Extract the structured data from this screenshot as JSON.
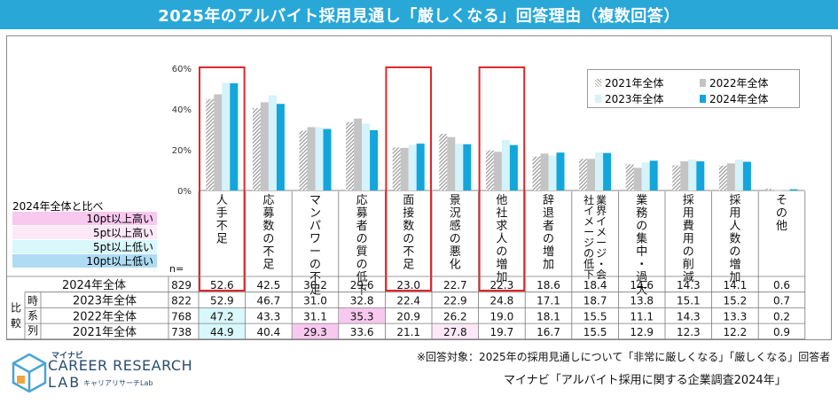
{
  "header": {
    "title": "2025年のアルバイト採用見通し「厳しくなる」回答理由（複数回答）"
  },
  "colors": {
    "banner": "#29a8d8",
    "s2021": "#9e9e9e",
    "s2022": "#c4c4c4",
    "s2023": "#d4f3fa",
    "s2024": "#12a6dc",
    "highlight": "#e0272b",
    "pink_dark": "#f8c8ee",
    "pink_light": "#fde8f8",
    "cyan_light": "#d8f8fb",
    "cyan_dark": "#aedcf4"
  },
  "chart_data": {
    "type": "bar",
    "ylim": [
      0,
      60
    ],
    "yticks": [
      "0%",
      "20%",
      "40%",
      "60%"
    ],
    "n_label": "n=",
    "categories": [
      "人手不足",
      "応募数の不足",
      "マンパワーの不足",
      "応募者の質の低下",
      "面接数の不足",
      "景況感の悪化",
      "他社求人の増加",
      "辞退者の増加",
      "業界イメージ・会社イメージの低下",
      "業務の集中・過大",
      "採用費用の削減",
      "採用人数の増加",
      "その他"
    ],
    "highlighted": [
      0,
      4,
      6
    ],
    "series": [
      {
        "name": "2021年全体",
        "n": 738,
        "values": [
          44.9,
          40.4,
          29.3,
          33.6,
          21.1,
          27.8,
          19.7,
          16.7,
          15.5,
          12.9,
          12.3,
          12.2,
          0.9
        ]
      },
      {
        "name": "2022年全体",
        "n": 768,
        "values": [
          47.2,
          43.3,
          31.1,
          35.3,
          20.9,
          26.2,
          19.0,
          18.1,
          15.5,
          11.1,
          14.3,
          13.3,
          0.2
        ]
      },
      {
        "name": "2023年全体",
        "n": 822,
        "values": [
          52.9,
          46.7,
          31.0,
          32.8,
          22.4,
          22.9,
          24.8,
          17.1,
          18.7,
          13.8,
          15.1,
          15.2,
          0.7
        ]
      },
      {
        "name": "2024年全体",
        "n": 829,
        "values": [
          52.6,
          42.5,
          30.2,
          29.6,
          23.0,
          22.7,
          22.3,
          18.6,
          18.4,
          14.6,
          14.3,
          14.1,
          0.6
        ]
      }
    ],
    "table_rows": [
      "2024年全体",
      "2023年全体",
      "2022年全体",
      "2021年全体"
    ],
    "side_labels": {
      "top": "時",
      "mid": "系",
      "bot": "列",
      "left_top": "比",
      "left_bot": "較"
    },
    "cell_highlights": [
      {
        "row": 2,
        "col": 0,
        "color": "cyan_light"
      },
      {
        "row": 3,
        "col": 0,
        "color": "cyan_light"
      },
      {
        "row": 2,
        "col": 3,
        "color": "pink_dark"
      },
      {
        "row": 3,
        "col": 2,
        "color": "pink_dark"
      },
      {
        "row": 3,
        "col": 5,
        "color": "pink_light"
      }
    ]
  },
  "comparison_legend": {
    "title": "2024年全体と比べ",
    "items": [
      {
        "label": "10pt以上高い",
        "color": "#f8c8ee"
      },
      {
        "label": "5pt以上高い",
        "color": "#fde8f8"
      },
      {
        "label": "5pt以上低い",
        "color": "#d8f8fb"
      },
      {
        "label": "10pt以上低い",
        "color": "#aedcf4"
      }
    ]
  },
  "footer": {
    "note": "※回答対象：2025年の採用見通しについて「非常に厳しくなる」「厳しくなる」回答者",
    "source": "マイナビ「アルバイト採用に関する企業調査2024年」"
  },
  "logo": {
    "brand": "マイナビ",
    "main": "CAREER RESEARCH",
    "lab": "LAB",
    "sub": "キャリアリサーチLab"
  }
}
